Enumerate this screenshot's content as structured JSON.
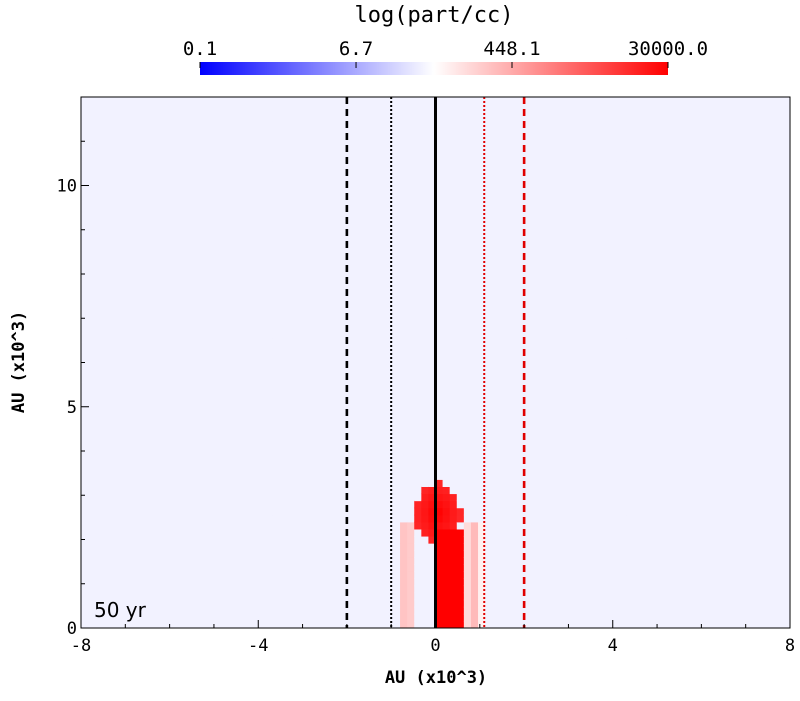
{
  "chart_data": {
    "type": "heatmap",
    "colorbar": {
      "title": "log(part/cc)",
      "tick_labels": [
        "0.1",
        "6.7",
        "448.1",
        "30000.0"
      ],
      "tick_values": [
        0.1,
        6.7,
        448.1,
        30000.0
      ],
      "range": [
        0.1,
        30000.0
      ],
      "scale": "log",
      "colors": [
        "#0000ff",
        "#ffffff",
        "#ff0000"
      ]
    },
    "xlabel": "AU (x10^3)",
    "ylabel": "AU (x10^3)",
    "xlim": [
      -8,
      8
    ],
    "ylim": [
      0,
      12
    ],
    "xticks": [
      -8,
      -4,
      0,
      4,
      8
    ],
    "xtick_labels": [
      "-8",
      "-4",
      "0",
      "4",
      "8"
    ],
    "yticks": [
      0,
      5,
      10
    ],
    "ytick_labels": [
      "0",
      "5",
      "10"
    ],
    "annotation": "50 yr",
    "vertical_lines": [
      {
        "x": -2,
        "style": "dashed",
        "color": "#000000"
      },
      {
        "x": -1,
        "style": "dotted",
        "color": "#000000"
      },
      {
        "x": 0,
        "style": "solid",
        "color": "#000000"
      },
      {
        "x": 1.1,
        "style": "dotted",
        "color": "#e00000"
      },
      {
        "x": 2,
        "style": "dashed",
        "color": "#e00000"
      }
    ],
    "field": {
      "background_log_density": -0.6,
      "ring_spacing": 1.0,
      "ring_log_amplitude": 0.45,
      "inner_glow_radius": 4.5,
      "jet": {
        "x_range": [
          0,
          0.6
        ],
        "y_range": [
          0,
          2.2
        ],
        "cap_radius": 0.7,
        "cap_center_y": 2.6,
        "peak_log_density": 4.48
      },
      "cavity": {
        "x_range": [
          -0.45,
          0
        ],
        "y_range": [
          0,
          1.8
        ],
        "log_density": -1.0
      }
    }
  }
}
